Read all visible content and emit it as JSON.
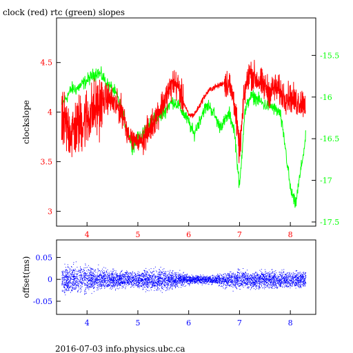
{
  "chart_data": [
    {
      "type": "line",
      "title": "clock (red) rtc (green) slopes",
      "ylabel": "clockslope",
      "xlim": [
        3.4,
        8.5
      ],
      "ylim": [
        2.85,
        4.95
      ],
      "y2lim": [
        -17.55,
        -15.05
      ],
      "x_ticks": [
        4,
        5,
        6,
        7,
        8
      ],
      "y_ticks": [
        3,
        3.5,
        4,
        4.5
      ],
      "y_tick_labels": [
        "3",
        "3.5",
        "4",
        "4.5"
      ],
      "y2_ticks": [
        -17.5,
        -17,
        -16.5,
        -16,
        -15.5
      ],
      "y2_tick_labels": [
        "-17.5",
        "-17",
        "-16.5",
        "-16",
        "-15.5"
      ],
      "series": [
        {
          "name": "clock",
          "color": "#ff0000",
          "axis": "left",
          "x": [
            3.5,
            3.6,
            3.7,
            3.8,
            3.9,
            4.0,
            4.1,
            4.2,
            4.3,
            4.4,
            4.5,
            4.6,
            4.7,
            4.8,
            4.9,
            5.0,
            5.1,
            5.2,
            5.3,
            5.4,
            5.5,
            5.6,
            5.7,
            5.8,
            5.9,
            6.0,
            6.1,
            6.2,
            6.3,
            6.4,
            6.5,
            6.6,
            6.7,
            6.8,
            6.9,
            7.0,
            7.1,
            7.2,
            7.3,
            7.4,
            7.5,
            7.6,
            7.7,
            7.8,
            7.9,
            8.0,
            8.1,
            8.2,
            8.3
          ],
          "values": [
            3.9,
            3.85,
            3.8,
            3.85,
            3.9,
            3.95,
            4.0,
            4.05,
            4.1,
            4.15,
            4.1,
            4.05,
            4.0,
            3.8,
            3.72,
            3.7,
            3.72,
            3.8,
            3.9,
            4.0,
            4.1,
            4.2,
            4.3,
            4.25,
            4.1,
            3.97,
            3.97,
            4.05,
            4.15,
            4.22,
            4.25,
            4.27,
            4.3,
            4.28,
            4.1,
            3.6,
            4.2,
            4.4,
            4.35,
            4.3,
            4.25,
            4.2,
            4.25,
            4.2,
            4.15,
            4.15,
            4.1,
            4.1,
            4.1
          ]
        },
        {
          "name": "rtc",
          "color": "#00ff00",
          "axis": "right",
          "x": [
            3.5,
            3.6,
            3.7,
            3.8,
            3.9,
            4.0,
            4.1,
            4.2,
            4.3,
            4.4,
            4.5,
            4.6,
            4.7,
            4.8,
            4.9,
            5.0,
            5.1,
            5.2,
            5.3,
            5.4,
            5.5,
            5.6,
            5.7,
            5.8,
            5.9,
            6.0,
            6.1,
            6.2,
            6.3,
            6.4,
            6.5,
            6.6,
            6.7,
            6.8,
            6.9,
            7.0,
            7.1,
            7.2,
            7.3,
            7.4,
            7.5,
            7.6,
            7.7,
            7.8,
            7.9,
            8.0,
            8.1,
            8.2,
            8.3
          ],
          "values": [
            -16.1,
            -16.0,
            -15.9,
            -15.9,
            -15.85,
            -15.8,
            -15.75,
            -15.7,
            -15.75,
            -15.85,
            -15.9,
            -16.0,
            -16.2,
            -16.4,
            -16.6,
            -16.5,
            -16.45,
            -16.35,
            -16.25,
            -16.25,
            -16.2,
            -16.1,
            -16.05,
            -16.1,
            -16.2,
            -16.3,
            -16.45,
            -16.3,
            -16.15,
            -16.1,
            -16.2,
            -16.35,
            -16.3,
            -16.2,
            -16.4,
            -17.1,
            -16.2,
            -16.0,
            -16.0,
            -16.05,
            -16.1,
            -16.1,
            -16.15,
            -16.2,
            -16.6,
            -17.1,
            -17.3,
            -16.9,
            -16.5
          ]
        }
      ]
    },
    {
      "type": "scatter",
      "ylabel": "offset(ms)",
      "xlim": [
        3.4,
        8.5
      ],
      "ylim": [
        -0.08,
        0.09
      ],
      "x_ticks": [
        4,
        5,
        6,
        7,
        8
      ],
      "y_ticks": [
        -0.05,
        0,
        0.05
      ],
      "y_tick_labels": [
        "-0.05",
        "0",
        "0.05"
      ],
      "series": [
        {
          "name": "offset",
          "color": "#0000ff",
          "x": [
            3.5,
            3.7,
            3.9,
            4.1,
            4.3,
            4.5,
            4.7,
            4.9,
            5.1,
            5.3,
            5.5,
            5.7,
            5.9,
            6.1,
            6.3,
            6.5,
            6.7,
            6.9,
            7.1,
            7.3,
            7.5,
            7.7,
            7.9,
            8.1,
            8.3
          ],
          "spread_ms": [
            0.03,
            0.035,
            0.035,
            0.03,
            0.025,
            0.025,
            0.02,
            0.018,
            0.022,
            0.025,
            0.025,
            0.02,
            0.015,
            0.01,
            0.01,
            0.01,
            0.018,
            0.022,
            0.022,
            0.022,
            0.022,
            0.022,
            0.02,
            0.02,
            0.02
          ]
        }
      ]
    }
  ],
  "footer": "2016-07-03 info.physics.ubc.ca",
  "colors": {
    "clock": "#ff0000",
    "rtc": "#00ff00",
    "offset": "#0000ff",
    "axes": "#000000"
  }
}
